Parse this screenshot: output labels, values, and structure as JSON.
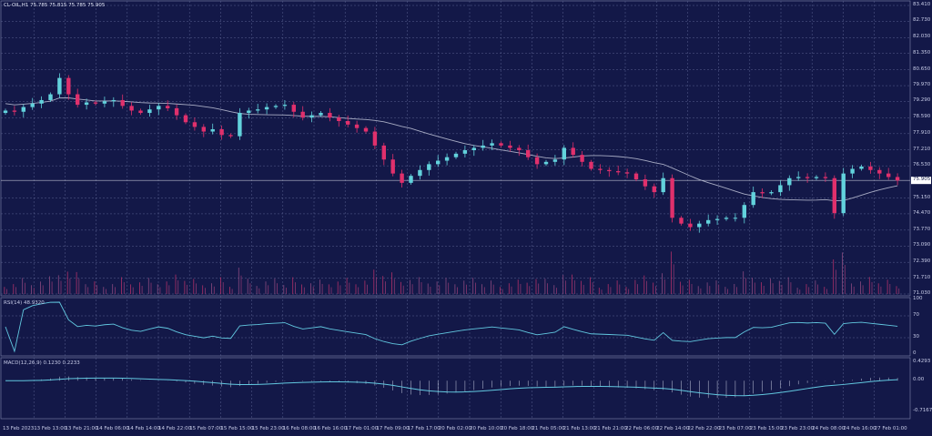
{
  "header": {
    "title": "CL-OIL,H1 75.785 75.815 75.785 75.905"
  },
  "colors": {
    "background": "#131848",
    "grid": "#5a6290",
    "bull": "#62d2dc",
    "bear": "#e0306c",
    "ma": "#a8acc4",
    "rsi": "#62c8e0",
    "macd_line": "#62c8e0",
    "macd_hist": "#c8cce0"
  },
  "chart_data": {
    "type": "candlestick",
    "symbol": "CL-OIL",
    "timeframe": "H1",
    "price_axis": {
      "ticks": [
        "83.410",
        "82.730",
        "82.030",
        "81.350",
        "80.650",
        "79.970",
        "79.290",
        "78.590",
        "77.910",
        "77.210",
        "76.530",
        "75.150",
        "74.470",
        "73.770",
        "73.090",
        "72.390",
        "71.710",
        "71.030"
      ],
      "ylim": [
        71.03,
        83.41
      ],
      "current_price": "75.905"
    },
    "closes": [
      78.9,
      78.85,
      79.05,
      79.2,
      79.35,
      79.6,
      80.3,
      79.6,
      79.15,
      79.25,
      79.2,
      79.3,
      79.35,
      79.1,
      78.9,
      78.8,
      78.95,
      79.1,
      79.0,
      78.7,
      78.4,
      78.2,
      78.0,
      78.1,
      77.85,
      77.8,
      78.8,
      78.9,
      78.95,
      79.05,
      79.1,
      79.15,
      78.85,
      78.6,
      78.7,
      78.8,
      78.6,
      78.45,
      78.3,
      78.15,
      78.0,
      77.4,
      76.8,
      76.2,
      75.8,
      76.1,
      76.35,
      76.6,
      76.75,
      76.9,
      77.05,
      77.2,
      77.3,
      77.4,
      77.5,
      77.4,
      77.3,
      77.2,
      76.9,
      76.6,
      76.7,
      76.8,
      77.3,
      77.0,
      76.7,
      76.4,
      76.35,
      76.3,
      76.25,
      76.2,
      75.95,
      75.65,
      75.4,
      76.0,
      74.3,
      74.05,
      73.9,
      74.05,
      74.2,
      74.25,
      74.3,
      74.3,
      74.85,
      75.4,
      75.35,
      75.4,
      75.7,
      76.0,
      76.05,
      76.0,
      76.05,
      76.0,
      74.5,
      76.2,
      76.4,
      76.5,
      76.35,
      76.2,
      76.05,
      75.9
    ],
    "moving_average_period": 20,
    "rsi": {
      "label": "RSI(14) 48.9320",
      "ticks": [
        "100",
        "70",
        "30",
        "0"
      ],
      "ylim": [
        0,
        100
      ]
    },
    "macd": {
      "label": "MACD(12,26,9) 0.1230 0.2233",
      "ticks": [
        "0.4293",
        "0.00",
        "-0.7167"
      ],
      "ylim": [
        -0.7167,
        0.4293
      ]
    },
    "time_labels": [
      "13 Feb 2023",
      "13 Feb 13:00",
      "13 Feb 21:00",
      "14 Feb 06:00",
      "14 Feb 14:00",
      "14 Feb 22:00",
      "15 Feb 07:00",
      "15 Feb 15:00",
      "15 Feb 23:00",
      "16 Feb 08:00",
      "16 Feb 16:00",
      "17 Feb 01:00",
      "17 Feb 09:00",
      "17 Feb 17:00",
      "20 Feb 02:00",
      "20 Feb 10:00",
      "20 Feb 18:00",
      "21 Feb 05:00",
      "21 Feb 13:00",
      "21 Feb 21:00",
      "22 Feb 06:00",
      "22 Feb 14:00",
      "22 Feb 22:00",
      "23 Feb 07:00",
      "23 Feb 15:00",
      "23 Feb 23:00",
      "24 Feb 08:00",
      "24 Feb 16:00",
      "27 Feb 01:00"
    ]
  }
}
